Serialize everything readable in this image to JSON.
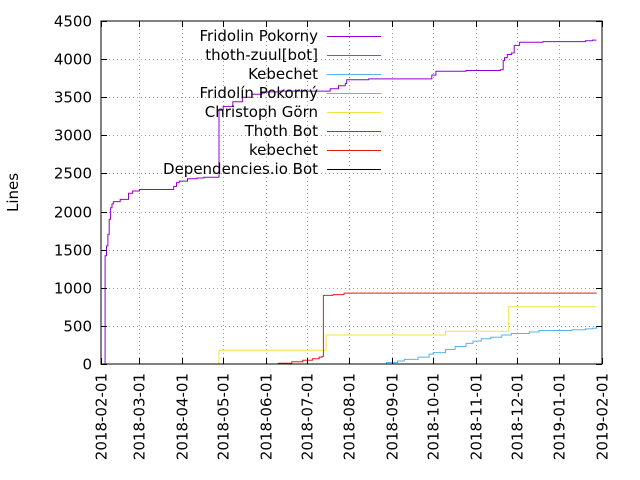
{
  "chart_data": {
    "type": "line",
    "title": "",
    "xlabel": "",
    "ylabel": "Lines",
    "ylim": [
      0,
      4500
    ],
    "xlim": [
      "2018-02-01",
      "2019-02-01"
    ],
    "grid": true,
    "legend_position": "top-left",
    "x_ticks": [
      "2018-02-01",
      "2018-03-01",
      "2018-04-01",
      "2018-05-01",
      "2018-06-01",
      "2018-07-01",
      "2018-08-01",
      "2018-09-01",
      "2018-10-01",
      "2018-11-01",
      "2018-12-01",
      "2019-01-01",
      "2019-02-01"
    ],
    "y_ticks": [
      0,
      500,
      1000,
      1500,
      2000,
      2500,
      3000,
      3500,
      4000,
      4500
    ],
    "series": [
      {
        "name": "Fridolin Pokorny",
        "color": "#9400d3",
        "step": true,
        "points": [
          [
            "2018-02-01",
            0
          ],
          [
            "2018-02-04",
            0
          ],
          [
            "2018-02-04",
            1420
          ],
          [
            "2018-02-05",
            1550
          ],
          [
            "2018-02-06",
            1700
          ],
          [
            "2018-02-07",
            1900
          ],
          [
            "2018-02-08",
            2050
          ],
          [
            "2018-02-09",
            2100
          ],
          [
            "2018-02-10",
            2130
          ],
          [
            "2018-02-14",
            2130
          ],
          [
            "2018-02-15",
            2160
          ],
          [
            "2018-02-20",
            2160
          ],
          [
            "2018-02-21",
            2240
          ],
          [
            "2018-02-24",
            2270
          ],
          [
            "2018-03-01",
            2290
          ],
          [
            "2018-03-25",
            2290
          ],
          [
            "2018-03-26",
            2330
          ],
          [
            "2018-03-28",
            2380
          ],
          [
            "2018-03-30",
            2400
          ],
          [
            "2018-04-04",
            2400
          ],
          [
            "2018-04-05",
            2430
          ],
          [
            "2018-04-08",
            2430
          ],
          [
            "2018-04-12",
            2440
          ],
          [
            "2018-04-17",
            2450
          ],
          [
            "2018-04-27",
            2450
          ],
          [
            "2018-04-28",
            3330
          ],
          [
            "2018-05-01",
            3380
          ],
          [
            "2018-05-08",
            3440
          ],
          [
            "2018-05-15",
            3500
          ],
          [
            "2018-05-22",
            3540
          ],
          [
            "2018-05-29",
            3570
          ],
          [
            "2018-06-10",
            3580
          ],
          [
            "2018-07-15",
            3580
          ],
          [
            "2018-07-18",
            3610
          ],
          [
            "2018-07-24",
            3650
          ],
          [
            "2018-07-29",
            3680
          ],
          [
            "2018-07-30",
            3730
          ],
          [
            "2018-08-15",
            3740
          ],
          [
            "2018-09-28",
            3740
          ],
          [
            "2018-09-30",
            3790
          ],
          [
            "2018-10-03",
            3840
          ],
          [
            "2018-10-25",
            3850
          ],
          [
            "2018-11-19",
            3860
          ],
          [
            "2018-11-21",
            3980
          ],
          [
            "2018-11-22",
            4020
          ],
          [
            "2018-11-24",
            4060
          ],
          [
            "2018-11-27",
            4080
          ],
          [
            "2018-11-29",
            4180
          ],
          [
            "2018-12-03",
            4220
          ],
          [
            "2018-12-20",
            4230
          ],
          [
            "2019-01-20",
            4240
          ],
          [
            "2019-01-25",
            4250
          ],
          [
            "2019-01-28",
            4250
          ]
        ]
      },
      {
        "name": "thoth-zuul[bot]",
        "color": "#009e73",
        "step": true,
        "points": [
          [
            "2018-02-01",
            0
          ],
          [
            "2019-01-28",
            0
          ]
        ]
      },
      {
        "name": "Kebechet",
        "color": "#56b4e9",
        "step": true,
        "points": [
          [
            "2018-02-01",
            0
          ],
          [
            "2018-08-25",
            0
          ],
          [
            "2018-08-28",
            20
          ],
          [
            "2018-09-05",
            40
          ],
          [
            "2018-09-10",
            60
          ],
          [
            "2018-09-20",
            90
          ],
          [
            "2018-09-28",
            130
          ],
          [
            "2018-10-01",
            150
          ],
          [
            "2018-10-10",
            190
          ],
          [
            "2018-10-17",
            230
          ],
          [
            "2018-10-25",
            270
          ],
          [
            "2018-10-30",
            300
          ],
          [
            "2018-11-05",
            330
          ],
          [
            "2018-11-12",
            350
          ],
          [
            "2018-11-20",
            380
          ],
          [
            "2018-11-27",
            400
          ],
          [
            "2018-12-01",
            400
          ],
          [
            "2018-12-10",
            420
          ],
          [
            "2018-12-17",
            440
          ],
          [
            "2019-01-10",
            450
          ],
          [
            "2019-01-20",
            460
          ],
          [
            "2019-01-25",
            470
          ],
          [
            "2019-01-28",
            490
          ]
        ]
      },
      {
        "name": "Fridolín Pokorný",
        "color": "#e69f00",
        "step": true,
        "points": [
          [
            "2018-02-01",
            0
          ],
          [
            "2019-01-28",
            0
          ]
        ]
      },
      {
        "name": "Christoph Görn",
        "color": "#f0e442",
        "step": true,
        "points": [
          [
            "2018-02-01",
            0
          ],
          [
            "2018-04-28",
            0
          ],
          [
            "2018-04-28",
            180
          ],
          [
            "2018-07-15",
            180
          ],
          [
            "2018-07-15",
            380
          ],
          [
            "2018-10-10",
            380
          ],
          [
            "2018-10-10",
            430
          ],
          [
            "2018-11-25",
            430
          ],
          [
            "2018-11-25",
            750
          ],
          [
            "2019-01-28",
            750
          ]
        ]
      },
      {
        "name": "Thoth Bot",
        "color": "#0072b2",
        "step": true,
        "points": [
          [
            "2018-02-01",
            0
          ],
          [
            "2019-01-28",
            0
          ]
        ]
      },
      {
        "name": "kebechet",
        "color": "#e51e10",
        "step": true,
        "points": [
          [
            "2018-02-01",
            0
          ],
          [
            "2018-06-01",
            0
          ],
          [
            "2018-06-10",
            10
          ],
          [
            "2018-06-20",
            30
          ],
          [
            "2018-06-28",
            50
          ],
          [
            "2018-07-05",
            70
          ],
          [
            "2018-07-10",
            90
          ],
          [
            "2018-07-12",
            100
          ],
          [
            "2018-07-13",
            900
          ],
          [
            "2018-07-20",
            910
          ],
          [
            "2018-07-28",
            930
          ],
          [
            "2019-01-28",
            930
          ]
        ]
      },
      {
        "name": "Dependencies.io Bot",
        "color": "#000000",
        "step": true,
        "points": [
          [
            "2018-03-01",
            0
          ],
          [
            "2019-01-28",
            0
          ]
        ]
      }
    ]
  }
}
